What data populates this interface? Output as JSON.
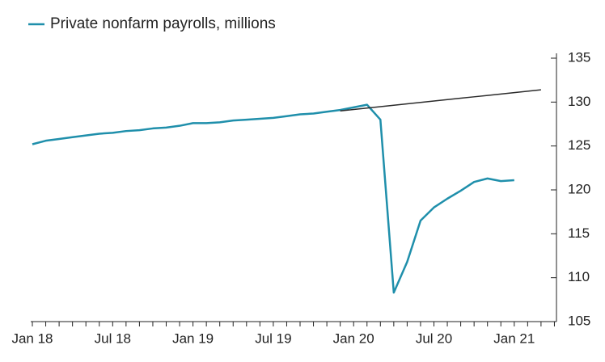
{
  "chart_data": {
    "type": "line",
    "legend_position": "top-left",
    "x": [
      "Jan 18",
      null,
      null,
      null,
      null,
      null,
      "Jul 18",
      null,
      null,
      null,
      null,
      null,
      "Jan 19",
      null,
      null,
      null,
      null,
      null,
      "Jul 19",
      null,
      null,
      null,
      null,
      null,
      "Jan 20",
      null,
      null,
      null,
      null,
      null,
      "Jul 20",
      null,
      null,
      null,
      null,
      null,
      "Jan 21",
      null,
      null,
      null
    ],
    "series": [
      {
        "name": "Private nonfarm payrolls, millions",
        "color": "#1f8fab",
        "values": [
          125.2,
          125.6,
          125.8,
          126.0,
          126.2,
          126.4,
          126.5,
          126.7,
          126.8,
          127.0,
          127.1,
          127.3,
          127.6,
          127.6,
          127.7,
          127.9,
          128.0,
          128.1,
          128.2,
          128.4,
          128.6,
          128.7,
          128.9,
          129.1,
          129.4,
          129.7,
          128.0,
          108.3,
          111.8,
          116.5,
          118.0,
          119.0,
          119.9,
          120.9,
          121.3,
          121.0,
          121.1,
          null,
          null,
          null
        ]
      },
      {
        "color": "#2b2b2b",
        "values": [
          null,
          null,
          null,
          null,
          null,
          null,
          null,
          null,
          null,
          null,
          null,
          null,
          null,
          null,
          null,
          null,
          null,
          null,
          null,
          null,
          null,
          null,
          null,
          129.0,
          129.16,
          129.32,
          129.48,
          129.64,
          129.8,
          129.96,
          130.12,
          130.28,
          130.44,
          130.6,
          130.76,
          130.92,
          131.08,
          131.24,
          131.4,
          null
        ]
      }
    ],
    "ylim": [
      105,
      135
    ],
    "yticks": [
      105,
      110,
      115,
      120,
      125,
      130,
      135
    ],
    "y_axis_side": "right"
  }
}
